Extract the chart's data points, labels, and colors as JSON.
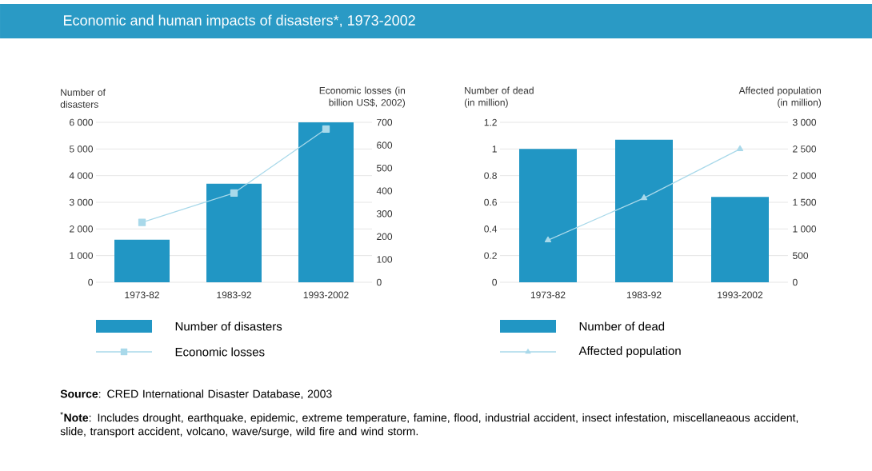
{
  "chart_data": [
    {
      "type": "bar",
      "title": "Economic and human impacts of disasters*, 1973-2002",
      "categories": [
        "1973-82",
        "1983-92",
        "1993-2002"
      ],
      "ylabel": "Number of disasters",
      "y2label": "Economic losses (in billion US$, 2002)",
      "series": [
        {
          "name": "Number of disasters",
          "color": "#2196c4",
          "values": [
            1600,
            3700,
            6000
          ]
        },
        {
          "name": "Economic losses",
          "type": "line",
          "axis": "y2",
          "color": "#a9d9ea",
          "marker": "square",
          "line_style": "solid",
          "values": [
            262,
            391,
            671
          ]
        }
      ],
      "ylim": [
        0,
        6000
      ],
      "yticks": [
        0,
        {
          "value": 1000,
          "label": "1 000"
        },
        {
          "value": 2000,
          "label": "2 000"
        },
        {
          "value": 3000,
          "label": "3 000"
        },
        {
          "value": 4000,
          "label": "4 000"
        },
        {
          "value": 5000,
          "label": "5 000"
        },
        {
          "value": 6000,
          "label": "6 000"
        }
      ],
      "y2lim": [
        0,
        700
      ],
      "y2ticks": [
        0,
        100,
        200,
        300,
        400,
        500,
        600,
        700
      ],
      "grid": "y",
      "legend": "bottom",
      "annotations": [
        "**Source**: CRED International Disaster Database, 2003",
        "$^{*}$**Note**: Includes drought, earthquake, epidemic, extreme temperature, famine, flood, industrial accident, insect infestation, miscellaneaous accident, slide, transport accident, volcano, wave/surge, wild fire and wind storm."
      ]
    },
    {
      "type": "bar",
      "categories": [
        "1973-82",
        "1983-92",
        "1993-2002"
      ],
      "ylabel": "Number of dead (in million)",
      "y2label": "Affected population (in million)",
      "series": [
        {
          "name": "Number of dead",
          "color": "#2196c4",
          "values": [
            1.0,
            1.07,
            0.64
          ]
        },
        {
          "name": "Affected population",
          "type": "line",
          "axis": "y2",
          "color": "#a9d9ea",
          "marker": "triangle",
          "line_style": "solid",
          "values": [
            790,
            1580,
            2500
          ]
        }
      ],
      "ylim": [
        0,
        1.2
      ],
      "yticks": [
        0,
        0.2,
        0.4,
        0.6,
        0.8,
        1,
        1.2
      ],
      "y2lim": [
        0,
        3000
      ],
      "y2ticks": [
        0,
        500,
        {
          "value": 1000,
          "label": "1 000"
        },
        {
          "value": 1500,
          "label": "1 500"
        },
        {
          "value": 2000,
          "label": "2 000"
        },
        {
          "value": 2500,
          "label": "2 500"
        },
        {
          "value": 3000,
          "label": "3 000"
        }
      ],
      "grid": "y",
      "legend": "bottom"
    }
  ]
}
